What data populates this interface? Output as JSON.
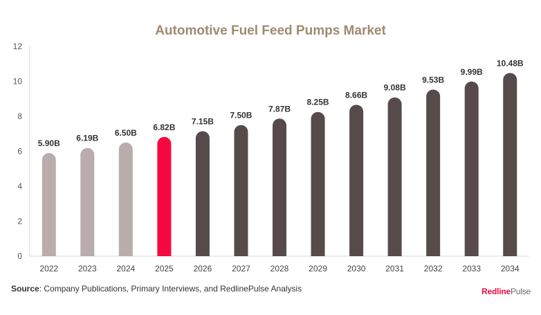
{
  "chart_data": {
    "type": "bar",
    "title": "Automotive Fuel Feed Pumps Market",
    "categories": [
      "2022",
      "2023",
      "2024",
      "2025",
      "2026",
      "2027",
      "2028",
      "2029",
      "2030",
      "2031",
      "2032",
      "2033",
      "2034"
    ],
    "values": [
      5.9,
      6.19,
      6.5,
      6.82,
      7.15,
      7.5,
      7.87,
      8.25,
      8.66,
      9.08,
      9.53,
      9.99,
      10.48
    ],
    "data_labels": [
      "5.90B",
      "6.19B",
      "6.50B",
      "6.82B",
      "7.15B",
      "7.50B",
      "7.87B",
      "8.25B",
      "8.66B",
      "9.08B",
      "9.53B",
      "9.99B",
      "10.48B"
    ],
    "ylim": [
      0,
      12
    ],
    "yticks": [
      0,
      2,
      4,
      6,
      8,
      10,
      12
    ],
    "xlabel": "",
    "ylabel": "",
    "grid": false,
    "colors": {
      "historical": "#b8acad",
      "current": "#f5093f",
      "forecast": "#574a4b"
    },
    "bar_groups": [
      "historical",
      "historical",
      "historical",
      "current",
      "forecast",
      "forecast",
      "forecast",
      "forecast",
      "forecast",
      "forecast",
      "forecast",
      "forecast",
      "forecast"
    ]
  },
  "footer": {
    "source_label": "Source",
    "source_text": ": Company Publications, Primary Interviews, and RedlinePulse Analysis",
    "logo_text": "RedlinePulse"
  }
}
